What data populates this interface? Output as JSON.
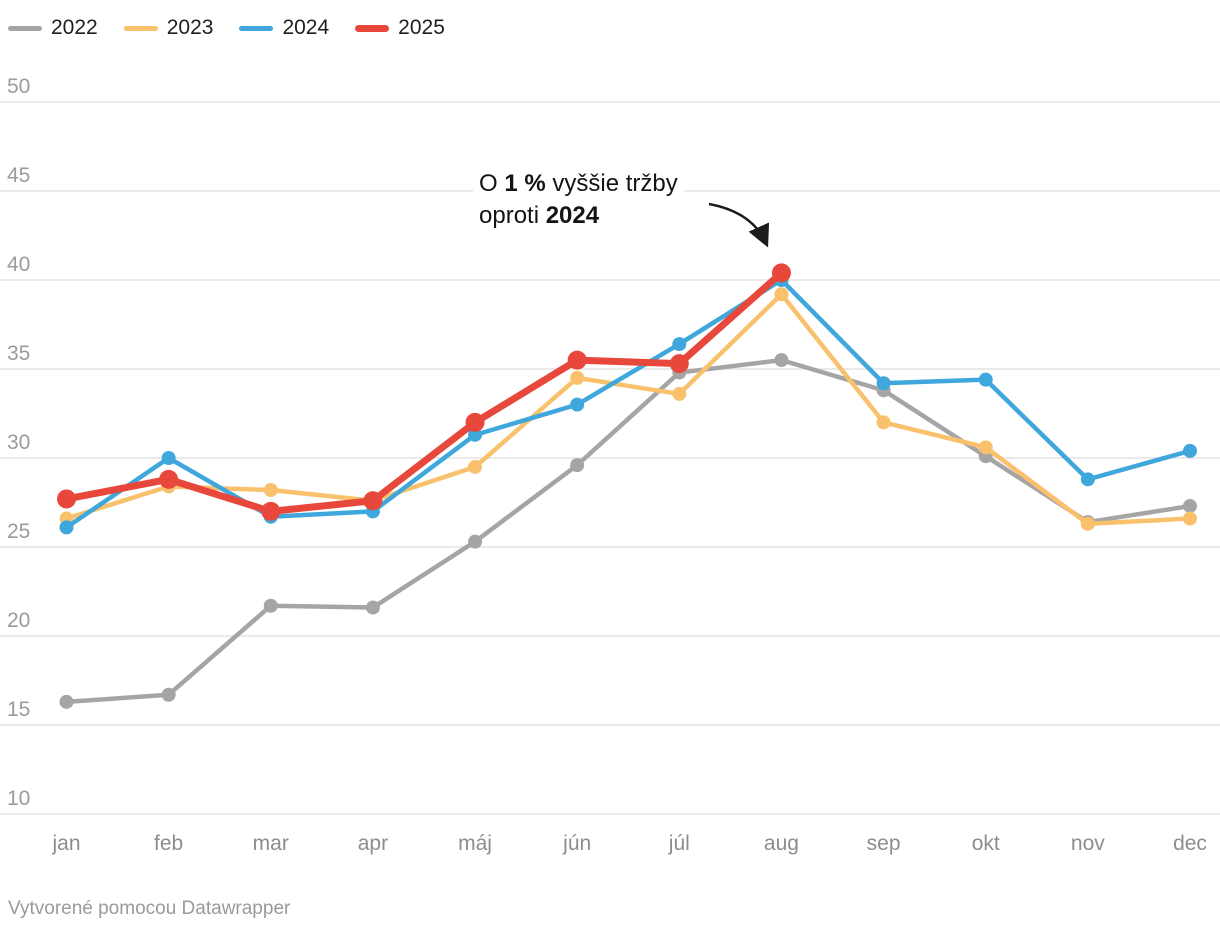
{
  "annotation": {
    "p1": "O ",
    "b1": "1 %",
    "p2": " vyššie tržby",
    "p3": "oproti ",
    "b2": "2024"
  },
  "footer": {
    "credit": "Vytvorené pomocou Datawrapper"
  },
  "colors": {
    "grid": "#e4e4e4",
    "y_tick_text": "#9b9b9b",
    "x_tick_text": "#8d8d8d",
    "annotation_arrow": "#1c1c1c"
  },
  "chart_data": {
    "type": "line",
    "x": [
      "jan",
      "feb",
      "mar",
      "apr",
      "máj",
      "jún",
      "júl",
      "aug",
      "sep",
      "okt",
      "nov",
      "dec"
    ],
    "series": [
      {
        "name": "2022",
        "color": "#a5a5a5",
        "values": [
          16.3,
          16.7,
          21.7,
          21.6,
          25.3,
          29.6,
          34.8,
          35.5,
          33.8,
          30.1,
          26.4,
          27.3
        ]
      },
      {
        "name": "2023",
        "color": "#f9c16b",
        "values": [
          26.6,
          28.4,
          28.2,
          27.6,
          29.5,
          34.5,
          33.6,
          39.2,
          32.0,
          30.6,
          26.3,
          26.6
        ]
      },
      {
        "name": "2024",
        "color": "#3fa7db",
        "values": [
          26.1,
          30.0,
          26.7,
          27.0,
          31.3,
          33.0,
          36.4,
          40.0,
          34.2,
          34.4,
          28.8,
          30.4
        ]
      },
      {
        "name": "2025",
        "color": "#e8473b",
        "values": [
          27.7,
          28.8,
          27.0,
          27.6,
          32.0,
          35.5,
          35.3,
          40.4
        ]
      }
    ],
    "title": "",
    "xlabel": "",
    "ylabel": "",
    "ylim": [
      10,
      50
    ],
    "yticks": [
      10,
      15,
      20,
      25,
      30,
      35,
      40,
      45,
      50
    ],
    "grid": true,
    "legend_position": "top-left"
  }
}
